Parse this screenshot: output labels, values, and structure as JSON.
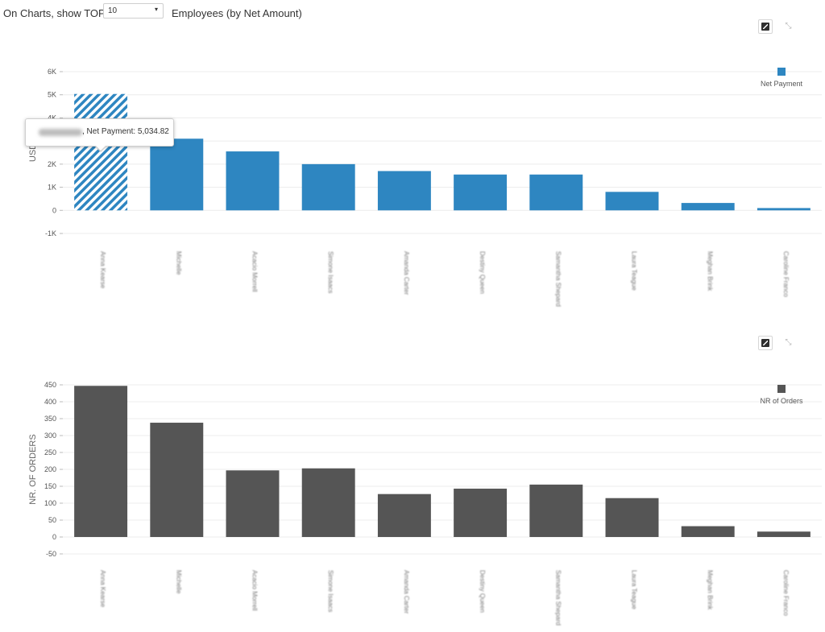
{
  "filter": {
    "label_prefix": "On Charts, show TOP",
    "selected": "10",
    "label_suffix": "Employees (by Net Amount)"
  },
  "toolbar": {
    "export_icon": "export-image-icon",
    "expand_icon": "expand-icon"
  },
  "tooltip": {
    "text": ", Net Payment: 5,034.82"
  },
  "colors": {
    "net_payment": "#2e86c1",
    "orders": "#555555",
    "hatch_bg": "#ffffff"
  },
  "chart_data": [
    {
      "type": "bar",
      "categories": [
        "Anna Kearse",
        "Michelle",
        "Acacio Morrell",
        "Simone Isaacs",
        "Amanda Carter",
        "Destiny Queen",
        "Samantha Shepard",
        "Laura Teague",
        "Meghan Brink",
        "Caroline Franco"
      ],
      "series": [
        {
          "name": "Net Payment",
          "values": [
            5034.82,
            3100,
            2550,
            2000,
            1700,
            1550,
            1550,
            800,
            320,
            100
          ]
        }
      ],
      "ylabel": "USD",
      "ylim": [
        -1000,
        6000
      ],
      "yticks": [
        "-1K",
        "0",
        "1K",
        "2K",
        "3K",
        "4K",
        "5K",
        "6K"
      ],
      "ytick_values": [
        -1000,
        0,
        1000,
        2000,
        3000,
        4000,
        5000,
        6000
      ],
      "highlight_index": 0,
      "legend": "top-right",
      "grid": true
    },
    {
      "type": "bar",
      "categories": [
        "Anna Kearse",
        "Michelle",
        "Acacio Morrell",
        "Simone Isaacs",
        "Amanda Carter",
        "Destiny Queen",
        "Samantha Shepard",
        "Laura Teague",
        "Meghan Brink",
        "Caroline Franco"
      ],
      "series": [
        {
          "name": "NR of Orders",
          "values": [
            447,
            338,
            197,
            203,
            127,
            143,
            155,
            115,
            32,
            16
          ]
        }
      ],
      "ylabel": "NR. OF ORDERS",
      "ylim": [
        -50,
        450
      ],
      "yticks": [
        "-50",
        "0",
        "50",
        "100",
        "150",
        "200",
        "250",
        "300",
        "350",
        "400",
        "450"
      ],
      "ytick_values": [
        -50,
        0,
        50,
        100,
        150,
        200,
        250,
        300,
        350,
        400,
        450
      ],
      "legend": "top-right",
      "grid": true
    }
  ]
}
